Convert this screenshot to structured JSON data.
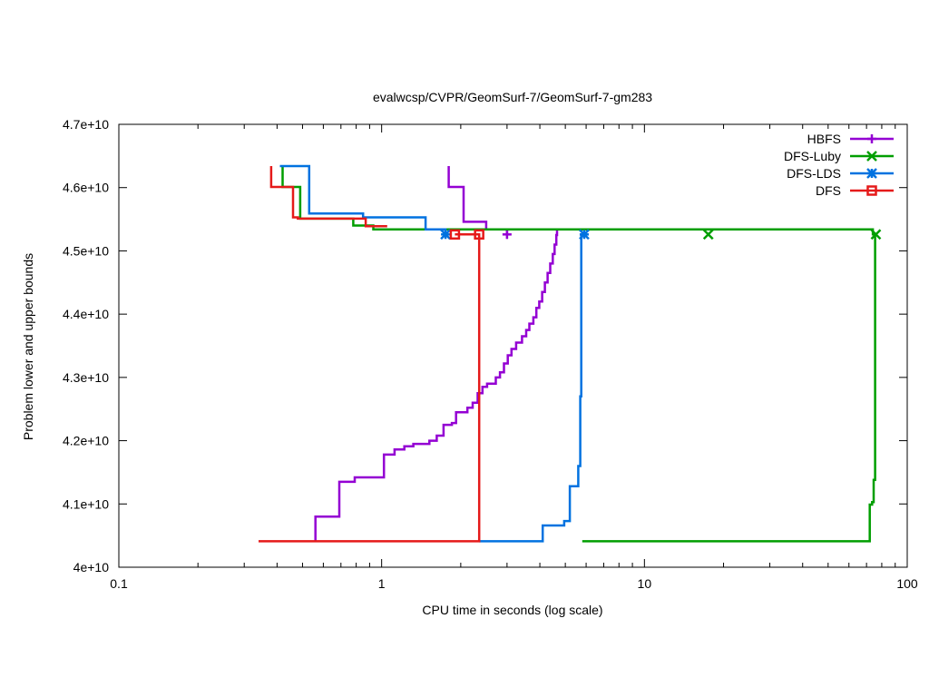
{
  "chart_data": {
    "type": "line",
    "title": "evalwcsp/CVPR/GeomSurf-7/GeomSurf-7-gm283",
    "xlabel": "CPU time in seconds (log scale)",
    "ylabel": "Problem lower and upper bounds",
    "x_scale": "log",
    "xlim": [
      0.1,
      100
    ],
    "ylim": [
      40000000000.0,
      47000000000.0
    ],
    "x_ticks": [
      0.1,
      1,
      10,
      100
    ],
    "x_tick_labels": [
      "0.1",
      "1",
      "10",
      "100"
    ],
    "y_ticks": [
      40000000000.0,
      41000000000.0,
      42000000000.0,
      43000000000.0,
      44000000000.0,
      45000000000.0,
      46000000000.0,
      47000000000.0
    ],
    "y_tick_labels": [
      "4e+10",
      "4.1e+10",
      "4.2e+10",
      "4.3e+10",
      "4.4e+10",
      "4.5e+10",
      "4.6e+10",
      "4.7e+10"
    ],
    "grid": false,
    "legend_position": "top-right",
    "series": [
      {
        "name": "HBFS",
        "color": "#9400d3",
        "marker": "plus",
        "upper": [
          [
            1.8,
            46340000000.0
          ],
          [
            1.8,
            46010000000.0
          ],
          [
            2.05,
            46010000000.0
          ],
          [
            2.05,
            45460000000.0
          ],
          [
            2.5,
            45460000000.0
          ],
          [
            2.5,
            45340000000.0
          ],
          [
            3.0,
            45340000000.0
          ],
          [
            3.0,
            45260000000.0
          ]
        ],
        "lower": [
          [
            0.56,
            40410000000.0
          ],
          [
            0.56,
            40800000000.0
          ],
          [
            0.69,
            40800000000.0
          ],
          [
            0.69,
            41350000000.0
          ],
          [
            0.79,
            41350000000.0
          ],
          [
            0.79,
            41420000000.0
          ],
          [
            1.02,
            41420000000.0
          ],
          [
            1.02,
            41780000000.0
          ],
          [
            1.12,
            41780000000.0
          ],
          [
            1.12,
            41860000000.0
          ],
          [
            1.22,
            41860000000.0
          ],
          [
            1.22,
            41910000000.0
          ],
          [
            1.32,
            41910000000.0
          ],
          [
            1.32,
            41950000000.0
          ],
          [
            1.52,
            41950000000.0
          ],
          [
            1.52,
            42000000000.0
          ],
          [
            1.62,
            42000000000.0
          ],
          [
            1.62,
            42080000000.0
          ],
          [
            1.72,
            42080000000.0
          ],
          [
            1.72,
            42250000000.0
          ],
          [
            1.85,
            42250000000.0
          ],
          [
            1.85,
            42280000000.0
          ],
          [
            1.92,
            42280000000.0
          ],
          [
            1.92,
            42450000000.0
          ],
          [
            2.12,
            42450000000.0
          ],
          [
            2.12,
            42520000000.0
          ],
          [
            2.22,
            42520000000.0
          ],
          [
            2.22,
            42600000000.0
          ],
          [
            2.32,
            42600000000.0
          ],
          [
            2.32,
            42750000000.0
          ],
          [
            2.42,
            42750000000.0
          ],
          [
            2.42,
            42850000000.0
          ],
          [
            2.52,
            42850000000.0
          ],
          [
            2.52,
            42900000000.0
          ],
          [
            2.72,
            42900000000.0
          ],
          [
            2.72,
            43000000000.0
          ],
          [
            2.82,
            43000000000.0
          ],
          [
            2.82,
            43080000000.0
          ],
          [
            2.92,
            43080000000.0
          ],
          [
            2.92,
            43220000000.0
          ],
          [
            3.02,
            43220000000.0
          ],
          [
            3.02,
            43350000000.0
          ],
          [
            3.12,
            43350000000.0
          ],
          [
            3.12,
            43450000000.0
          ],
          [
            3.25,
            43450000000.0
          ],
          [
            3.25,
            43550000000.0
          ],
          [
            3.42,
            43550000000.0
          ],
          [
            3.42,
            43650000000.0
          ],
          [
            3.55,
            43650000000.0
          ],
          [
            3.55,
            43750000000.0
          ],
          [
            3.65,
            43750000000.0
          ],
          [
            3.65,
            43850000000.0
          ],
          [
            3.78,
            43850000000.0
          ],
          [
            3.78,
            43950000000.0
          ],
          [
            3.88,
            43950000000.0
          ],
          [
            3.88,
            44100000000.0
          ],
          [
            3.98,
            44100000000.0
          ],
          [
            3.98,
            44200000000.0
          ],
          [
            4.08,
            44200000000.0
          ],
          [
            4.08,
            44350000000.0
          ],
          [
            4.18,
            44350000000.0
          ],
          [
            4.18,
            44500000000.0
          ],
          [
            4.28,
            44500000000.0
          ],
          [
            4.28,
            44650000000.0
          ],
          [
            4.38,
            44650000000.0
          ],
          [
            4.38,
            44800000000.0
          ],
          [
            4.48,
            44800000000.0
          ],
          [
            4.48,
            44950000000.0
          ],
          [
            4.55,
            44950000000.0
          ],
          [
            4.55,
            45100000000.0
          ],
          [
            4.62,
            45100000000.0
          ],
          [
            4.62,
            45250000000.0
          ],
          [
            4.65,
            45250000000.0
          ],
          [
            4.65,
            45330000000.0
          ]
        ],
        "markers": [
          [
            3.0,
            45260000000.0
          ]
        ]
      },
      {
        "name": "DFS-Luby",
        "color": "#009e00",
        "marker": "x",
        "upper": [
          [
            0.42,
            46340000000.0
          ],
          [
            0.42,
            46010000000.0
          ],
          [
            0.49,
            46010000000.0
          ],
          [
            0.49,
            45510000000.0
          ],
          [
            0.78,
            45510000000.0
          ],
          [
            0.78,
            45400000000.0
          ],
          [
            0.93,
            45400000000.0
          ],
          [
            0.93,
            45340000000.0
          ],
          [
            74.0,
            45340000000.0
          ],
          [
            74.0,
            45260000000.0
          ],
          [
            76.0,
            45260000000.0
          ]
        ],
        "lower": [
          [
            5.8,
            40410000000.0
          ],
          [
            72.0,
            40410000000.0
          ],
          [
            72.0,
            40990000000.0
          ],
          [
            73.5,
            40990000000.0
          ],
          [
            73.5,
            41030000000.0
          ],
          [
            74.5,
            41030000000.0
          ],
          [
            74.5,
            41380000000.0
          ],
          [
            75.5,
            41380000000.0
          ],
          [
            75.5,
            45260000000.0
          ]
        ],
        "markers": [
          [
            17.5,
            45260000000.0
          ],
          [
            76.0,
            45260000000.0
          ]
        ]
      },
      {
        "name": "DFS-LDS",
        "color": "#0072e0",
        "marker": "star",
        "upper": [
          [
            0.41,
            46340000000.0
          ],
          [
            0.53,
            46340000000.0
          ],
          [
            0.53,
            45590000000.0
          ],
          [
            0.85,
            45590000000.0
          ],
          [
            0.85,
            45530000000.0
          ],
          [
            1.47,
            45530000000.0
          ],
          [
            1.47,
            45340000000.0
          ],
          [
            1.75,
            45340000000.0
          ],
          [
            1.75,
            45260000000.0
          ]
        ],
        "lower": [
          [
            2.35,
            40410000000.0
          ],
          [
            4.1,
            40410000000.0
          ],
          [
            4.1,
            40660000000.0
          ],
          [
            4.95,
            40660000000.0
          ],
          [
            4.95,
            40730000000.0
          ],
          [
            5.2,
            40730000000.0
          ],
          [
            5.2,
            41280000000.0
          ],
          [
            5.6,
            41280000000.0
          ],
          [
            5.6,
            41600000000.0
          ],
          [
            5.7,
            41600000000.0
          ],
          [
            5.7,
            42700000000.0
          ],
          [
            5.75,
            42700000000.0
          ],
          [
            5.75,
            45260000000.0
          ],
          [
            6.0,
            45260000000.0
          ]
        ],
        "markers": [
          [
            1.75,
            45260000000.0
          ],
          [
            5.9,
            45260000000.0
          ]
        ]
      },
      {
        "name": "DFS",
        "color": "#e51a1a",
        "marker": "square",
        "upper": [
          [
            0.38,
            46340000000.0
          ],
          [
            0.38,
            46010000000.0
          ],
          [
            0.46,
            46010000000.0
          ],
          [
            0.46,
            45530000000.0
          ],
          [
            0.48,
            45530000000.0
          ],
          [
            0.48,
            45510000000.0
          ],
          [
            0.87,
            45510000000.0
          ],
          [
            0.87,
            45390000000.0
          ],
          [
            1.05,
            45390000000.0
          ]
        ],
        "lower": [
          [
            0.34,
            40410000000.0
          ],
          [
            2.35,
            40410000000.0
          ],
          [
            2.35,
            45260000000.0
          ],
          [
            1.9,
            45260000000.0
          ]
        ],
        "markers": [
          [
            1.9,
            45260000000.0
          ],
          [
            2.35,
            45260000000.0
          ]
        ]
      }
    ]
  }
}
